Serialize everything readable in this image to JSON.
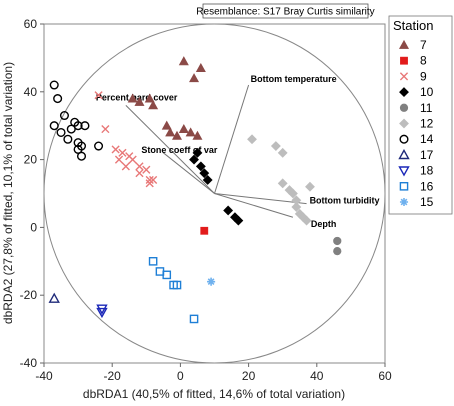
{
  "chart_data": {
    "type": "scatter",
    "title": "Resemblance: S17 Bray Curtis similarity",
    "xlabel": "dbRDA1 (40,5% of fitted, 14,6% of total variation)",
    "ylabel": "dbRDA2 (27,8% of fitted, 10,1% of total variation)",
    "xlim": [
      -40,
      60
    ],
    "ylim": [
      -40,
      60
    ],
    "xticks": [
      "-40",
      "-20",
      "0",
      "20",
      "40",
      "60"
    ],
    "yticks": [
      "-40",
      "-20",
      "0",
      "20",
      "40",
      "60"
    ],
    "legend_title": "Station",
    "legend_position": "right",
    "circle": {
      "cx": 10,
      "cy": 10,
      "r": 50
    },
    "vector_origin": [
      10,
      10
    ],
    "vectors": [
      {
        "label": "Percent hard cover",
        "end": [
          -16,
          36
        ]
      },
      {
        "label": "Bottom temperature",
        "end": [
          20,
          42
        ]
      },
      {
        "label": "Stone coeff of var",
        "end": [
          -5,
          22
        ]
      },
      {
        "label": "Bottom turbidity",
        "end": [
          37,
          7
        ]
      },
      {
        "label": "Depth",
        "end": [
          33,
          3
        ]
      }
    ],
    "series": [
      {
        "name": "7",
        "marker": "triangle",
        "color": "#8B4A47",
        "filled": true,
        "points": [
          [
            1,
            49
          ],
          [
            6,
            47
          ],
          [
            4,
            44
          ],
          [
            -14,
            38
          ],
          [
            -12,
            37
          ],
          [
            -8,
            36
          ],
          [
            -9,
            38
          ],
          [
            -3,
            28
          ],
          [
            -4,
            30
          ],
          [
            1,
            29
          ],
          [
            3,
            28
          ],
          [
            5,
            27
          ],
          [
            -1,
            27
          ]
        ]
      },
      {
        "name": "8",
        "marker": "square",
        "color": "#E21B1B",
        "filled": true,
        "points": [
          [
            7,
            -1
          ]
        ]
      },
      {
        "name": "9",
        "marker": "x",
        "color": "#E87878",
        "filled": false,
        "points": [
          [
            -24,
            39
          ],
          [
            -22,
            29
          ],
          [
            -19,
            23
          ],
          [
            -17,
            22
          ],
          [
            -15,
            21
          ],
          [
            -14,
            20
          ],
          [
            -12,
            18
          ],
          [
            -12,
            16
          ],
          [
            -10,
            17
          ],
          [
            -9,
            14
          ],
          [
            -9,
            13
          ],
          [
            -8,
            14
          ],
          [
            -16,
            18
          ],
          [
            -18,
            20
          ]
        ]
      },
      {
        "name": "10",
        "marker": "diamond",
        "color": "#000000",
        "filled": true,
        "points": [
          [
            4,
            20
          ],
          [
            6,
            18
          ],
          [
            7,
            16
          ],
          [
            8,
            14
          ],
          [
            5,
            22
          ],
          [
            14,
            5
          ],
          [
            16,
            3
          ],
          [
            17,
            2
          ]
        ]
      },
      {
        "name": "11",
        "marker": "circle",
        "color": "#808080",
        "filled": true,
        "points": [
          [
            46,
            -4
          ],
          [
            46,
            -7
          ]
        ]
      },
      {
        "name": "12",
        "marker": "diamond",
        "color": "#BDBDBD",
        "filled": true,
        "points": [
          [
            21,
            26
          ],
          [
            28,
            24
          ],
          [
            30,
            22
          ],
          [
            30,
            13
          ],
          [
            32,
            11
          ],
          [
            33,
            10
          ],
          [
            34,
            8
          ],
          [
            35,
            4
          ],
          [
            36,
            3
          ],
          [
            37,
            2
          ],
          [
            38,
            12
          ],
          [
            34,
            6
          ]
        ]
      },
      {
        "name": "14",
        "marker": "circle",
        "color": "#000000",
        "filled": false,
        "points": [
          [
            -37,
            42
          ],
          [
            -36,
            38
          ],
          [
            -34,
            33
          ],
          [
            -31,
            31
          ],
          [
            -32,
            29
          ],
          [
            -30,
            30
          ],
          [
            -37,
            30
          ],
          [
            -35,
            28
          ],
          [
            -28,
            30
          ],
          [
            -30,
            25
          ],
          [
            -30,
            23
          ],
          [
            -29,
            24
          ],
          [
            -29,
            21
          ],
          [
            -33,
            26
          ],
          [
            -24,
            24
          ]
        ]
      },
      {
        "name": "17",
        "marker": "triangle",
        "color": "#1F2A7A",
        "filled": false,
        "points": [
          [
            -37,
            -21
          ]
        ]
      },
      {
        "name": "18",
        "marker": "invtriangle",
        "color": "#1A27B8",
        "filled": false,
        "points": [
          [
            -23,
            -24
          ],
          [
            -23,
            -25
          ]
        ]
      },
      {
        "name": "16",
        "marker": "square",
        "color": "#1E7FD6",
        "filled": false,
        "points": [
          [
            -8,
            -10
          ],
          [
            -6,
            -13
          ],
          [
            -4,
            -14
          ],
          [
            -2,
            -17
          ],
          [
            -1,
            -17
          ],
          [
            4,
            -27
          ]
        ]
      },
      {
        "name": "15",
        "marker": "asterisk",
        "color": "#6FB1EE",
        "filled": false,
        "points": [
          [
            9,
            -16
          ]
        ]
      }
    ]
  }
}
